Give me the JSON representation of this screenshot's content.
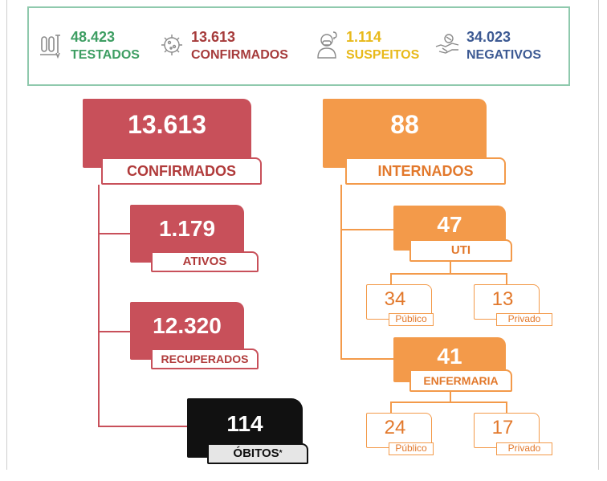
{
  "summary": {
    "testados": {
      "value": "48.423",
      "label": "TESTADOS",
      "icon": "test-tubes-icon",
      "color": "#3e9e63"
    },
    "confirmados": {
      "value": "13.613",
      "label": "CONFIRMADOS",
      "icon": "virus-icon",
      "color": "#a63b3b"
    },
    "suspeitos": {
      "value": "1.114",
      "label": "SUSPEITOS",
      "icon": "masked-person-icon",
      "color": "#e8b91a"
    },
    "negativos": {
      "value": "34.023",
      "label": "NEGATIVOS",
      "icon": "handshake-icon",
      "color": "#3d5a93"
    }
  },
  "confirmed": {
    "value": "13.613",
    "label": "CONFIRMADOS",
    "ativos": {
      "value": "1.179",
      "label": "ATIVOS"
    },
    "recuperados": {
      "value": "12.320",
      "label": "RECUPERADOS"
    },
    "obitos": {
      "value": "114",
      "label": "ÓBITOS",
      "marker": "*"
    }
  },
  "hospitalized": {
    "value": "88",
    "label": "INTERNADOS",
    "uti": {
      "value": "47",
      "label": "UTI",
      "publico": {
        "value": "34",
        "label": "Público"
      },
      "privado": {
        "value": "13",
        "label": "Privado"
      }
    },
    "enfermaria": {
      "value": "41",
      "label": "ENFERMARIA",
      "publico": {
        "value": "24",
        "label": "Público"
      },
      "privado": {
        "value": "17",
        "label": "Privado"
      }
    }
  },
  "colors": {
    "red": "#c8505a",
    "orange": "#f39a4a",
    "black": "#111111",
    "frame": "#8fc9ad"
  }
}
